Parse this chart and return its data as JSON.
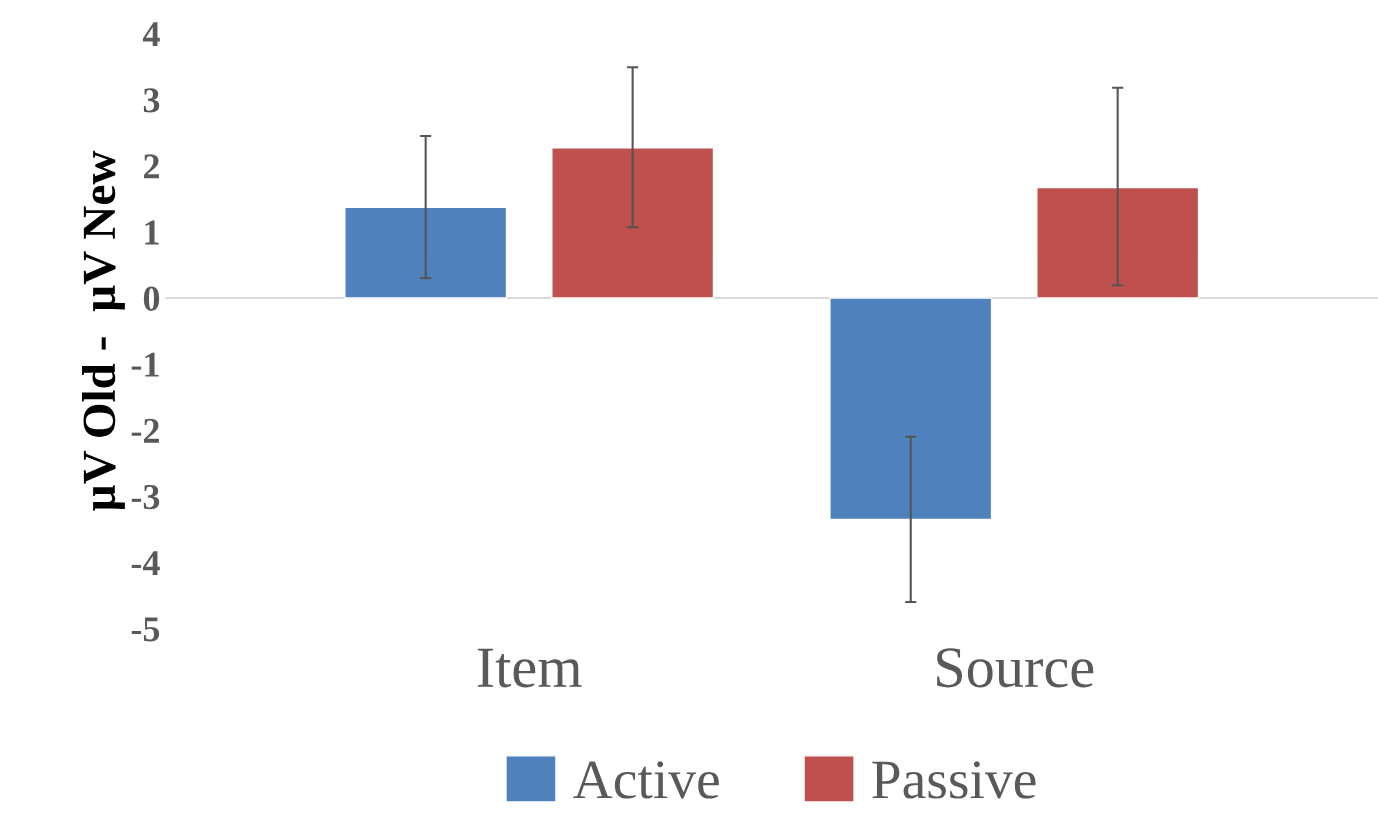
{
  "chart_data": {
    "type": "bar",
    "ylabel": "µV Old -  µV New",
    "categories": [
      "Item",
      "Source"
    ],
    "series": [
      {
        "name": "Active",
        "color": "#4f81bd",
        "values": [
          1.37,
          -3.35
        ],
        "errors": [
          [
            0.3,
            2.45
          ],
          [
            -4.6,
            -2.1
          ]
        ]
      },
      {
        "name": "Passive",
        "color": "#c0504d",
        "values": [
          2.27,
          1.67
        ],
        "errors": [
          [
            1.07,
            3.49
          ],
          [
            0.19,
            3.18
          ]
        ]
      }
    ],
    "ylim": [
      -5,
      4
    ],
    "yticks": [
      -5,
      -4,
      -3,
      -2,
      -1,
      0,
      1,
      2,
      3,
      4
    ],
    "grid": false,
    "legend": "bottom",
    "ref_lines": [
      {
        "axis": "y",
        "value": 0,
        "color": "#d9d9d9"
      }
    ]
  }
}
